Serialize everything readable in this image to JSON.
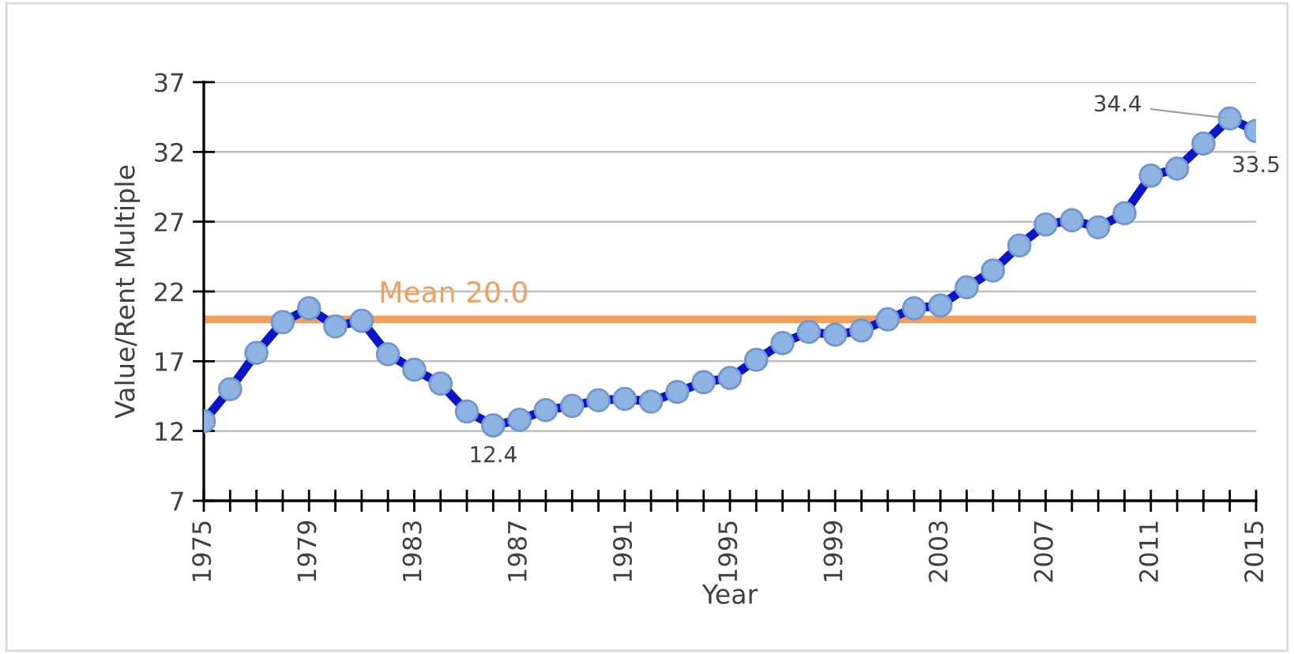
{
  "chart_data": {
    "type": "line",
    "xlabel": "Year",
    "ylabel": "Value/Rent Multiple",
    "x": [
      1975,
      1976,
      1977,
      1978,
      1979,
      1980,
      1981,
      1982,
      1983,
      1984,
      1985,
      1986,
      1987,
      1988,
      1989,
      1990,
      1991,
      1992,
      1993,
      1994,
      1995,
      1996,
      1997,
      1998,
      1999,
      2000,
      2001,
      2002,
      2003,
      2004,
      2005,
      2006,
      2007,
      2008,
      2009,
      2010,
      2011,
      2012,
      2013,
      2014,
      2015
    ],
    "series": [
      {
        "color": "#0a14c8",
        "values": [
          12.7,
          15.0,
          17.6,
          19.8,
          20.8,
          19.5,
          19.9,
          17.5,
          16.4,
          15.4,
          13.4,
          12.4,
          12.8,
          13.5,
          13.8,
          14.2,
          14.3,
          14.1,
          14.8,
          15.5,
          15.8,
          17.1,
          18.3,
          19.1,
          18.9,
          19.2,
          20.0,
          20.8,
          21.0,
          22.3,
          23.5,
          25.3,
          26.8,
          27.1,
          26.6,
          27.6,
          30.3,
          30.8,
          32.6,
          34.4,
          33.5
        ],
        "value_labels": [
          null,
          null,
          null,
          null,
          null,
          null,
          null,
          null,
          null,
          null,
          null,
          "12.4",
          null,
          null,
          null,
          null,
          null,
          null,
          null,
          null,
          null,
          null,
          null,
          null,
          null,
          null,
          null,
          null,
          null,
          null,
          null,
          null,
          null,
          null,
          null,
          null,
          null,
          null,
          null,
          "34.4",
          "33.5"
        ]
      }
    ],
    "marker": "circle",
    "line_style": "solid",
    "grid": "y",
    "ylim": [
      7,
      37
    ],
    "yticks": [
      7,
      12,
      17,
      22,
      27,
      32,
      37
    ],
    "xlim": [
      1975,
      2015
    ],
    "xticks": [
      1975,
      {
        "value": 1976,
        "label": null
      },
      {
        "value": 1977,
        "label": null
      },
      {
        "value": 1978,
        "label": null
      },
      1979,
      {
        "value": 1980,
        "label": null
      },
      {
        "value": 1981,
        "label": null
      },
      {
        "value": 1982,
        "label": null
      },
      1983,
      {
        "value": 1984,
        "label": null
      },
      {
        "value": 1985,
        "label": null
      },
      {
        "value": 1986,
        "label": null
      },
      1987,
      {
        "value": 1988,
        "label": null
      },
      {
        "value": 1989,
        "label": null
      },
      {
        "value": 1990,
        "label": null
      },
      1991,
      {
        "value": 1992,
        "label": null
      },
      {
        "value": 1993,
        "label": null
      },
      {
        "value": 1994,
        "label": null
      },
      1995,
      {
        "value": 1996,
        "label": null
      },
      {
        "value": 1997,
        "label": null
      },
      {
        "value": 1998,
        "label": null
      },
      1999,
      {
        "value": 2000,
        "label": null
      },
      {
        "value": 2001,
        "label": null
      },
      {
        "value": 2002,
        "label": null
      },
      2003,
      {
        "value": 2004,
        "label": null
      },
      {
        "value": 2005,
        "label": null
      },
      {
        "value": 2006,
        "label": null
      },
      2007,
      {
        "value": 2008,
        "label": null
      },
      {
        "value": 2009,
        "label": null
      },
      {
        "value": 2010,
        "label": null
      },
      2011,
      {
        "value": 2012,
        "label": null
      },
      {
        "value": 2013,
        "label": null
      },
      {
        "value": 2014,
        "label": null
      },
      2015
    ],
    "ref_lines": [
      {
        "axis": "y",
        "value": 20.0,
        "label": "Mean 20.0",
        "color": "#f0a05a",
        "line_style": "solid"
      }
    ]
  }
}
